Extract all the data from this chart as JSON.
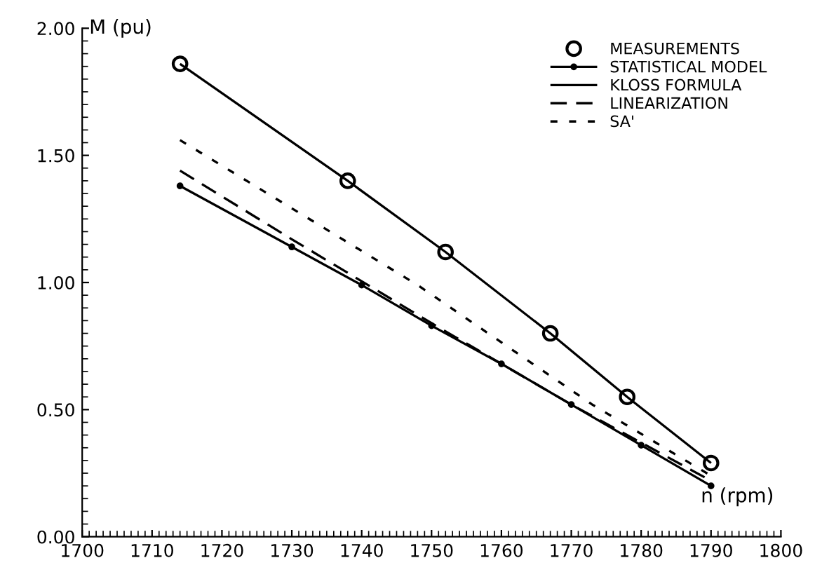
{
  "chart_data": {
    "type": "line",
    "xlabel": "n (rpm)",
    "ylabel": "M (pu)",
    "xlim": [
      1700,
      1800
    ],
    "xticks": [
      1700,
      1710,
      1720,
      1730,
      1740,
      1750,
      1760,
      1770,
      1780,
      1790,
      1800
    ],
    "ylim": [
      0,
      2
    ],
    "yticks": [
      {
        "value": 0,
        "label": "0.00"
      },
      {
        "value": 0.5,
        "label": "0.50"
      },
      {
        "value": 1,
        "label": "1.00"
      },
      {
        "value": 1.5,
        "label": "1.50"
      },
      {
        "value": 2,
        "label": "2.00"
      }
    ],
    "grid": false,
    "legend": "top right",
    "series": [
      {
        "name": "MEASUREMENTS",
        "type": "scatter",
        "marker": "circle",
        "color": "#000000",
        "x": [
          1714,
          1738,
          1752,
          1767,
          1778,
          1790
        ],
        "values": [
          1.86,
          1.4,
          1.12,
          0.8,
          0.55,
          0.29
        ]
      },
      {
        "name": "STATISTICAL MODEL",
        "marker": "circle",
        "line_style": "solid",
        "color": "#000000",
        "x": [
          1714,
          1730,
          1740,
          1750,
          1760,
          1770,
          1780,
          1790
        ],
        "values": [
          1.38,
          1.14,
          0.99,
          0.83,
          0.68,
          0.52,
          0.36,
          0.2
        ]
      },
      {
        "name": "KLOSS FORMULA",
        "line_style": "solid",
        "color": "#000000",
        "x": [
          1714,
          1738,
          1752,
          1767,
          1778,
          1790
        ],
        "values": [
          1.86,
          1.4,
          1.12,
          0.8,
          0.55,
          0.29
        ]
      },
      {
        "name": "LINEARIZATION",
        "line_style": "dashed",
        "color": "#000000",
        "x": [
          1714,
          1730,
          1750,
          1770,
          1790
        ],
        "values": [
          1.44,
          1.17,
          0.84,
          0.52,
          0.22
        ]
      },
      {
        "name": "SA'",
        "line_style": "dotted",
        "color": "#000000",
        "x": [
          1714,
          1748,
          1773,
          1790
        ],
        "values": [
          1.56,
          0.99,
          0.52,
          0.24
        ]
      }
    ]
  }
}
